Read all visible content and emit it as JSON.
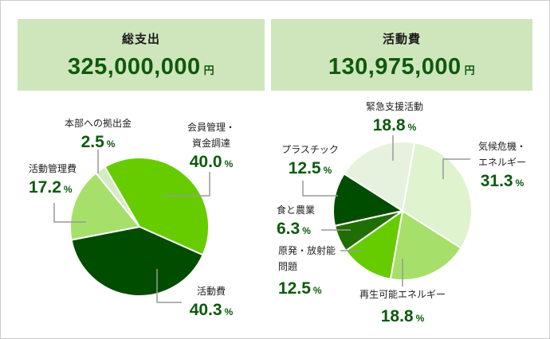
{
  "colors": {
    "panel_bg": "#cfe6bc",
    "amount_text": "#0d5a0d",
    "leader_line": "#999999",
    "border": "#cccccc"
  },
  "left": {
    "title": "総支出",
    "amount": "325,000,000",
    "unit": "円",
    "labels": [
      {
        "name": "本部への拠出金",
        "value": "2.5",
        "pct": "%"
      },
      {
        "name": "会員管理・",
        "name2": "資金調達",
        "value": "40.0",
        "pct": "%"
      },
      {
        "name": "活動管理費",
        "value": "17.2",
        "pct": "%"
      },
      {
        "name": "活動費",
        "value": "40.3",
        "pct": "%"
      }
    ]
  },
  "right": {
    "title": "活動費",
    "amount": "130,975,000",
    "unit": "円",
    "labels": [
      {
        "name": "緊急支援活動",
        "value": "18.8",
        "pct": "%"
      },
      {
        "name": "気候危機・",
        "name2": "エネルギー",
        "value": "31.3",
        "pct": "%"
      },
      {
        "name": "プラスチック",
        "value": "12.5",
        "pct": "%"
      },
      {
        "name": "食と農業",
        "value": "6.3",
        "pct": "%"
      },
      {
        "name": "原発・放射能",
        "name2": "問題",
        "value": "12.5",
        "pct": "%"
      },
      {
        "name": "再生可能エネルギー",
        "value": "18.8",
        "pct": "%"
      }
    ]
  },
  "chart_data": [
    {
      "type": "pie",
      "title": "総支出",
      "total": "325,000,000円",
      "categories": [
        "会員管理・資金調達",
        "活動費",
        "活動管理費",
        "本部への拠出金"
      ],
      "values": [
        40.0,
        40.3,
        17.2,
        2.5
      ],
      "colors": [
        "#66cc00",
        "#004d00",
        "#a6e06a",
        "#d4ecc4"
      ],
      "unit": "%"
    },
    {
      "type": "pie",
      "title": "活動費",
      "total": "130,975,000円",
      "categories": [
        "気候危機・エネルギー",
        "再生可能エネルギー",
        "原発・放射能問題",
        "食と農業",
        "プラスチック",
        "緊急支援活動"
      ],
      "values": [
        31.3,
        18.8,
        12.5,
        6.3,
        12.5,
        18.8
      ],
      "colors": [
        "#dff3cf",
        "#a6e06a",
        "#66cc00",
        "#1f6e00",
        "#004d00",
        "#e6f2de"
      ],
      "unit": "%"
    }
  ]
}
